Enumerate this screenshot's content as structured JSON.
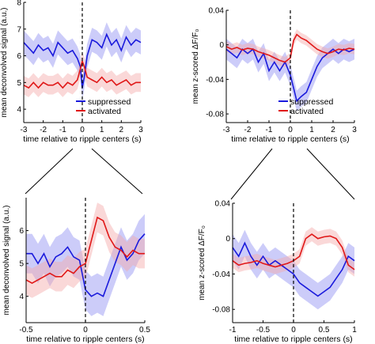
{
  "colors": {
    "suppressed": "#1a1adc",
    "activated": "#e01818",
    "suppressed_band": "#8f8ff2",
    "activated_band": "#f5a9a9"
  },
  "chart_data": [
    {
      "id": "A",
      "type": "line",
      "xlabel": "time relative to ripple centers (s)",
      "ylabel": "mean deconvolved signal (a.u.)",
      "xlim": [
        -3,
        3
      ],
      "ylim": [
        3.5,
        8
      ],
      "xticks": [
        -3,
        -2,
        -1,
        0,
        1,
        2,
        3
      ],
      "xtick_labels": [
        "-3",
        "-2",
        "-1",
        "0",
        "1",
        "2",
        "3"
      ],
      "yticks": [
        4,
        5,
        6,
        7,
        8
      ],
      "ytick_labels": [
        "4",
        "5",
        "6",
        "7",
        "8"
      ],
      "grid": false,
      "legend": {
        "position": "bottom-right",
        "entries": [
          "suppressed",
          "activated"
        ]
      },
      "x": [
        -3,
        -2.75,
        -2.5,
        -2.25,
        -2,
        -1.75,
        -1.5,
        -1.25,
        -1,
        -0.75,
        -0.5,
        -0.25,
        -0.1,
        0,
        0.1,
        0.25,
        0.5,
        0.75,
        1,
        1.25,
        1.5,
        1.75,
        2,
        2.25,
        2.5,
        2.75,
        3
      ],
      "series": [
        {
          "name": "suppressed",
          "values": [
            6.5,
            6.3,
            6.1,
            6.4,
            6.2,
            6.3,
            6.0,
            6.5,
            6.3,
            6.1,
            6.2,
            5.9,
            5.6,
            4.8,
            5.2,
            6.0,
            6.6,
            6.5,
            6.3,
            6.8,
            6.4,
            6.6,
            6.2,
            6.7,
            6.4,
            6.6,
            6.5
          ],
          "band": 0.45
        },
        {
          "name": "activated",
          "values": [
            4.9,
            4.8,
            5.0,
            4.8,
            5.0,
            4.9,
            4.9,
            5.0,
            4.8,
            5.0,
            4.9,
            5.1,
            5.5,
            5.8,
            5.6,
            5.2,
            5.1,
            5.0,
            5.2,
            5.0,
            5.1,
            4.9,
            5.0,
            5.1,
            4.9,
            5.0,
            5.0
          ],
          "band": 0.35
        }
      ]
    },
    {
      "id": "B",
      "type": "line",
      "xlabel": "time relative to ripple centers (s)",
      "ylabel": "mean z-scored ΔF/F₀",
      "xlim": [
        -3,
        3
      ],
      "ylim": [
        -0.09,
        0.04
      ],
      "xticks": [
        -3,
        -2,
        -1,
        0,
        1,
        2,
        3
      ],
      "xtick_labels": [
        "-3",
        "-2",
        "-1",
        "0",
        "1",
        "2",
        "3"
      ],
      "yticks": [
        -0.08,
        -0.04,
        0,
        0.04
      ],
      "ytick_labels": [
        "-0.08",
        "-0.04",
        "0",
        "0.04"
      ],
      "grid": false,
      "legend": {
        "position": "bottom-right",
        "entries": [
          "suppressed",
          "activated"
        ]
      },
      "x": [
        -3,
        -2.75,
        -2.5,
        -2.25,
        -2,
        -1.75,
        -1.5,
        -1.25,
        -1,
        -0.75,
        -0.5,
        -0.25,
        0,
        0.15,
        0.3,
        0.5,
        0.75,
        1,
        1.25,
        1.5,
        1.75,
        2,
        2.25,
        2.5,
        2.75,
        3
      ],
      "series": [
        {
          "name": "suppressed",
          "values": [
            -0.005,
            -0.01,
            -0.015,
            -0.005,
            -0.01,
            -0.005,
            -0.02,
            -0.01,
            -0.03,
            -0.02,
            -0.03,
            -0.02,
            -0.035,
            -0.05,
            -0.065,
            -0.06,
            -0.055,
            -0.04,
            -0.025,
            -0.015,
            -0.01,
            -0.005,
            -0.01,
            -0.005,
            -0.008,
            -0.005
          ],
          "band": 0.012
        },
        {
          "name": "activated",
          "values": [
            -0.002,
            -0.005,
            -0.003,
            -0.006,
            -0.004,
            -0.005,
            -0.008,
            -0.01,
            -0.012,
            -0.015,
            -0.018,
            -0.02,
            -0.015,
            0.005,
            0.012,
            0.008,
            0.005,
            0.0,
            -0.005,
            -0.008,
            -0.01,
            -0.008,
            -0.005,
            -0.006,
            -0.004,
            -0.005
          ],
          "band": 0.006
        }
      ]
    },
    {
      "id": "C",
      "type": "line",
      "xlabel": "time relative to ripple centers (s)",
      "ylabel": "mean deconvolved signal (a.u.)",
      "xlim": [
        -0.5,
        0.5
      ],
      "ylim": [
        3.2,
        7.0
      ],
      "xticks": [
        -0.5,
        0,
        0.5
      ],
      "xtick_labels": [
        "-0.5",
        "0",
        "0.5"
      ],
      "yticks": [
        4,
        5,
        6
      ],
      "ytick_labels": [
        "4",
        "5",
        "6"
      ],
      "grid": false,
      "x": [
        -0.5,
        -0.45,
        -0.4,
        -0.35,
        -0.3,
        -0.25,
        -0.2,
        -0.15,
        -0.1,
        -0.05,
        0,
        0.05,
        0.1,
        0.15,
        0.2,
        0.25,
        0.3,
        0.35,
        0.4,
        0.45,
        0.5
      ],
      "series": [
        {
          "name": "suppressed",
          "values": [
            5.3,
            5.3,
            5.0,
            5.3,
            4.9,
            5.2,
            5.3,
            5.5,
            5.2,
            5.1,
            4.2,
            4.0,
            4.1,
            4.0,
            4.5,
            5.0,
            5.5,
            5.1,
            5.3,
            5.7,
            5.9
          ],
          "band": 0.6
        },
        {
          "name": "activated",
          "values": [
            4.5,
            4.4,
            4.5,
            4.6,
            4.7,
            4.6,
            4.6,
            4.8,
            4.7,
            4.9,
            5.0,
            5.7,
            6.4,
            6.3,
            5.8,
            5.5,
            5.4,
            5.2,
            5.4,
            5.3,
            5.3
          ],
          "band": 0.45
        }
      ]
    },
    {
      "id": "D",
      "type": "line",
      "xlabel": "time relative to ripple centers (s)",
      "ylabel": "mean z-scored ΔF/F₀",
      "xlim": [
        -1,
        1
      ],
      "ylim": [
        -0.095,
        0.04
      ],
      "xticks": [
        -1,
        -0.5,
        0,
        0.5,
        1
      ],
      "xtick_labels": [
        "-1",
        "-0.5",
        "0",
        "0.5",
        "1"
      ],
      "yticks": [
        -0.08,
        -0.04,
        0,
        0.04
      ],
      "ytick_labels": [
        "-0.08",
        "-0.04",
        "0",
        "0.04"
      ],
      "grid": false,
      "x": [
        -1,
        -0.9,
        -0.8,
        -0.7,
        -0.6,
        -0.5,
        -0.4,
        -0.3,
        -0.2,
        -0.1,
        0,
        0.1,
        0.2,
        0.3,
        0.4,
        0.5,
        0.6,
        0.7,
        0.8,
        0.9,
        1
      ],
      "series": [
        {
          "name": "suppressed",
          "values": [
            -0.01,
            -0.02,
            -0.005,
            -0.02,
            -0.03,
            -0.02,
            -0.03,
            -0.025,
            -0.03,
            -0.035,
            -0.04,
            -0.05,
            -0.055,
            -0.06,
            -0.065,
            -0.06,
            -0.055,
            -0.045,
            -0.035,
            -0.02,
            -0.025
          ],
          "band": 0.015
        },
        {
          "name": "activated",
          "values": [
            -0.025,
            -0.03,
            -0.028,
            -0.027,
            -0.025,
            -0.028,
            -0.03,
            -0.032,
            -0.03,
            -0.028,
            -0.025,
            -0.02,
            0.0,
            0.005,
            0.0,
            0.002,
            0.003,
            0.0,
            -0.01,
            -0.03,
            -0.035
          ],
          "band": 0.008
        }
      ]
    }
  ]
}
